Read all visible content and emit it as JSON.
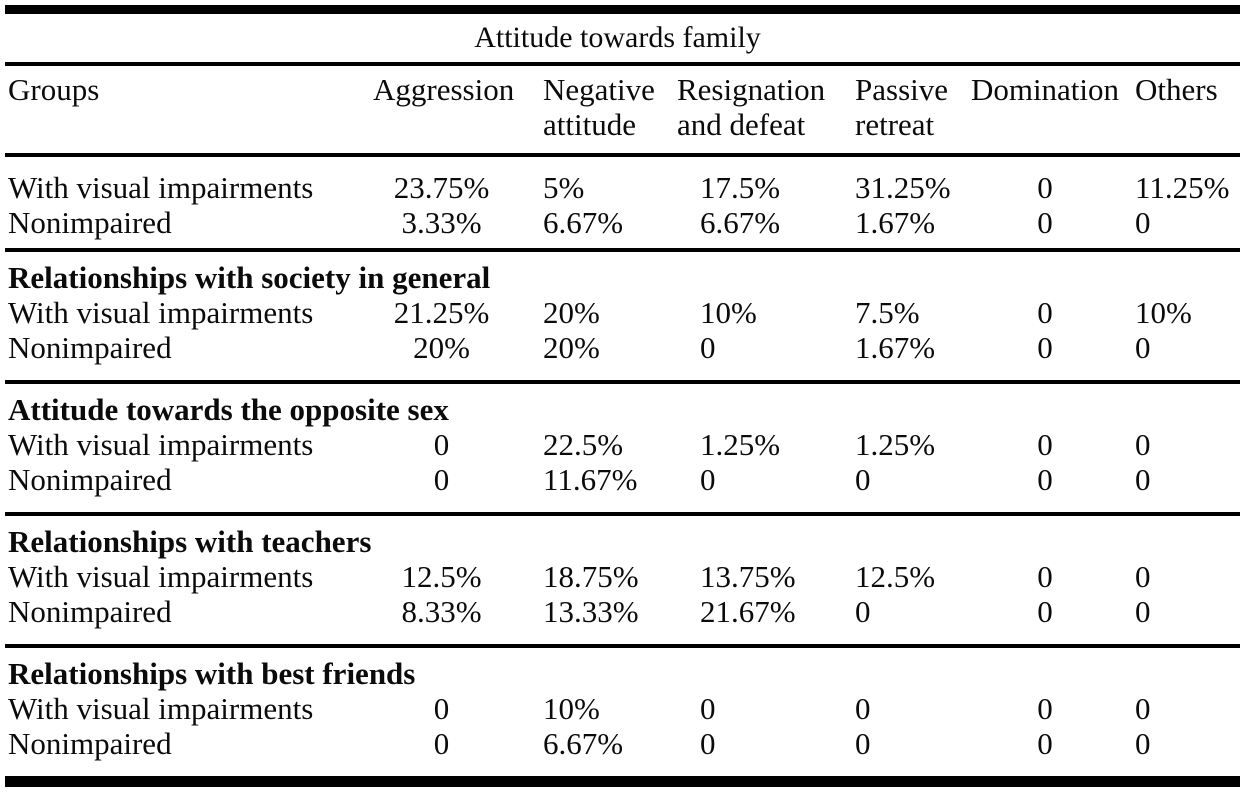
{
  "table": {
    "title": "Attitude towards family",
    "header_cells": [
      {
        "line1": "Groups",
        "line2": ""
      },
      {
        "line1": "Aggression",
        "line2": ""
      },
      {
        "line1": "Negative",
        "line2": "attitude"
      },
      {
        "line1": "Resignation",
        "line2": "and defeat"
      },
      {
        "line1": "Passive",
        "line2": "retreat"
      },
      {
        "line1": "Domination",
        "line2": ""
      },
      {
        "line1": "Others",
        "line2": ""
      }
    ],
    "columns": [
      "Groups",
      "Aggression",
      "Negative attitude",
      "Resignation and defeat",
      "Passive retreat",
      "Domination",
      "Others"
    ],
    "sections": [
      {
        "header": null,
        "rows": [
          [
            "With visual impairments",
            "23.75%",
            "5%",
            "17.5%",
            "31.25%",
            "0",
            "11.25%"
          ],
          [
            "Nonimpaired",
            "3.33%",
            "6.67%",
            "6.67%",
            "1.67%",
            "0",
            "0"
          ]
        ]
      },
      {
        "header": "Relationships with society in general",
        "rows": [
          [
            "With visual impairments",
            "21.25%",
            "20%",
            "10%",
            "7.5%",
            "0",
            "10%"
          ],
          [
            "Nonimpaired",
            "20%",
            "20%",
            "0",
            "1.67%",
            "0",
            "0"
          ]
        ]
      },
      {
        "header": "Attitude towards the opposite sex",
        "rows": [
          [
            "With visual impairments",
            "0",
            "22.5%",
            "1.25%",
            "1.25%",
            "0",
            "0"
          ],
          [
            "Nonimpaired",
            "0",
            "11.67%",
            "0",
            "0",
            "0",
            "0"
          ]
        ]
      },
      {
        "header": "Relationships with teachers",
        "rows": [
          [
            "With visual impairments",
            "12.5%",
            "18.75%",
            "13.75%",
            "12.5%",
            "0",
            "0"
          ],
          [
            "Nonimpaired",
            "8.33%",
            "13.33%",
            "21.67%",
            "0",
            "0",
            "0"
          ]
        ]
      },
      {
        "header": "Relationships with best friends",
        "rows": [
          [
            "With visual impairments",
            "0",
            "10%",
            "0",
            "0",
            "0",
            "0"
          ],
          [
            "Nonimpaired",
            "0",
            "6.67%",
            "0",
            "0",
            "0",
            "0"
          ]
        ]
      }
    ],
    "colors": {
      "text": "#0b0b0b",
      "rule": "#000000",
      "background": "#ffffff"
    }
  }
}
